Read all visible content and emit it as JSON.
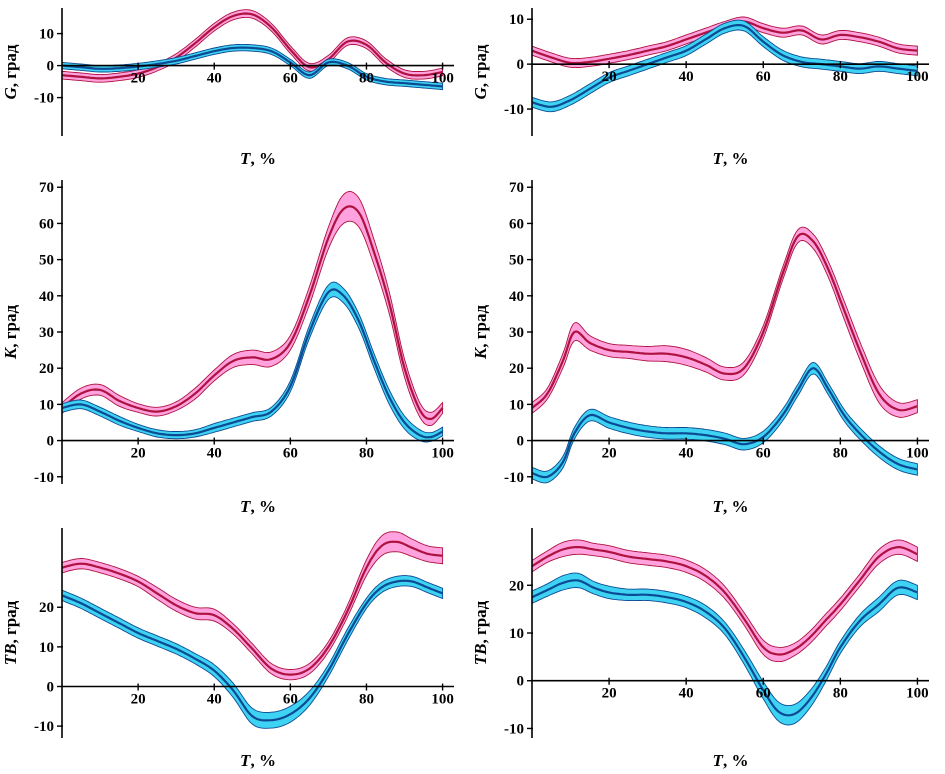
{
  "colors": {
    "red": {
      "line": "#ae1240",
      "band": "#ffa2de"
    },
    "blue": {
      "line": "#0d4a94",
      "band": "#3ed3f2"
    }
  },
  "chart_data": [
    {
      "type": "area",
      "name": "chart-g-left",
      "ylabel": {
        "var": "G",
        "rest": ", град"
      },
      "xlabel": {
        "var": "T",
        "rest": ", %"
      },
      "xlim": [
        0,
        103
      ],
      "ylim": [
        -22,
        18
      ],
      "xticks": [
        20,
        40,
        60,
        80,
        100
      ],
      "yticks": [
        -10,
        0,
        10
      ],
      "grid": false,
      "legend": "none",
      "series": [
        {
          "color": "red",
          "band": 1.2,
          "x": [
            0,
            5,
            10,
            15,
            20,
            25,
            30,
            35,
            40,
            45,
            50,
            55,
            60,
            65,
            70,
            75,
            80,
            85,
            90,
            95,
            100
          ],
          "y": [
            -3,
            -3.5,
            -4,
            -3.5,
            -2.5,
            -0.5,
            2.5,
            7,
            12,
            15.5,
            16,
            12,
            5,
            -0.5,
            2,
            7.5,
            6.5,
            1,
            -2.5,
            -3,
            -2
          ]
        },
        {
          "color": "blue",
          "band": 1.0,
          "x": [
            0,
            5,
            10,
            15,
            20,
            25,
            30,
            35,
            40,
            45,
            50,
            55,
            60,
            65,
            70,
            75,
            80,
            85,
            90,
            95,
            100
          ],
          "y": [
            0,
            -0.5,
            -1,
            -0.8,
            -0.3,
            0.5,
            1.5,
            3,
            4.5,
            5.5,
            5.5,
            4.5,
            1,
            -3,
            1,
            0,
            -3.5,
            -5,
            -5.5,
            -6,
            -6.5
          ]
        }
      ]
    },
    {
      "type": "area",
      "name": "chart-g-right",
      "ylabel": {
        "var": "G",
        "rest": ", град"
      },
      "xlabel": {
        "var": "T",
        "rest": ", %"
      },
      "xlim": [
        0,
        103
      ],
      "ylim": [
        -16,
        12.5
      ],
      "xticks": [
        20,
        40,
        60,
        80,
        100
      ],
      "yticks": [
        -10,
        0,
        10
      ],
      "grid": false,
      "legend": "none",
      "series": [
        {
          "color": "red",
          "band": 1.0,
          "x": [
            0,
            5,
            10,
            15,
            20,
            25,
            30,
            35,
            40,
            45,
            50,
            55,
            60,
            65,
            70,
            75,
            80,
            85,
            90,
            95,
            100
          ],
          "y": [
            3,
            1.5,
            0.3,
            0.5,
            1.2,
            2,
            3,
            4,
            5.5,
            7,
            8.5,
            9.5,
            8,
            7,
            7.5,
            5.5,
            6.5,
            6,
            5,
            3.5,
            3
          ]
        },
        {
          "color": "blue",
          "band": 1.1,
          "x": [
            0,
            5,
            10,
            15,
            20,
            25,
            30,
            35,
            40,
            45,
            50,
            55,
            60,
            65,
            70,
            75,
            80,
            85,
            90,
            95,
            100
          ],
          "y": [
            -8.5,
            -9.5,
            -8,
            -5.5,
            -3,
            -1.5,
            0,
            1.5,
            3,
            5.5,
            8,
            8.5,
            5,
            2,
            0.5,
            0,
            -0.5,
            -1,
            -0.5,
            -1,
            -1.5
          ]
        }
      ]
    },
    {
      "type": "area",
      "name": "chart-k-left",
      "ylabel": {
        "var": "K",
        "rest": ", град"
      },
      "xlabel": {
        "var": "T",
        "rest": ", %"
      },
      "xlim": [
        0,
        103
      ],
      "ylim": [
        -12,
        72
      ],
      "xticks": [
        20,
        40,
        60,
        80,
        100
      ],
      "yticks": [
        -10,
        0,
        10,
        20,
        30,
        40,
        50,
        60,
        70
      ],
      "grid": false,
      "legend": "none",
      "series": [
        {
          "color": "red",
          "band": [
            1.5,
            1.5,
            1.5,
            1.5,
            1.2,
            1.2,
            1.2,
            1.5,
            1.5,
            1.8,
            2,
            2,
            2,
            2.5,
            3,
            4,
            4,
            3.5,
            3,
            2.5,
            2,
            1.8,
            1.5
          ],
          "x": [
            0,
            5,
            10,
            15,
            20,
            25,
            30,
            35,
            40,
            45,
            50,
            55,
            60,
            65,
            70,
            74,
            78,
            82,
            86,
            90,
            94,
            97,
            100
          ],
          "y": [
            9,
            13,
            14,
            11,
            9,
            8,
            9.5,
            13,
            18,
            22,
            23,
            22.5,
            27,
            40,
            56,
            64,
            63,
            52,
            38,
            20,
            8.5,
            6,
            9
          ]
        },
        {
          "color": "blue",
          "band": [
            1.2,
            1.2,
            1.2,
            1.2,
            1,
            1,
            1,
            1,
            1.2,
            1.2,
            1.2,
            1.2,
            1.5,
            1.8,
            2,
            2,
            2,
            2,
            2,
            1.8,
            1.5,
            1.2,
            1.2
          ],
          "x": [
            0,
            5,
            10,
            15,
            20,
            25,
            30,
            35,
            40,
            45,
            50,
            55,
            60,
            65,
            70,
            74,
            78,
            82,
            86,
            90,
            94,
            97,
            100
          ],
          "y": [
            9,
            10,
            8,
            5.5,
            3.5,
            2,
            1.5,
            2,
            3.5,
            5,
            6.5,
            8,
            15,
            30,
            41,
            40,
            33,
            22,
            12,
            5,
            1.5,
            1,
            2.5
          ]
        }
      ]
    },
    {
      "type": "area",
      "name": "chart-k-right",
      "ylabel": {
        "var": "K",
        "rest": ", град"
      },
      "xlabel": {
        "var": "T",
        "rest": ", %"
      },
      "xlim": [
        0,
        103
      ],
      "ylim": [
        -12,
        72
      ],
      "xticks": [
        20,
        40,
        60,
        80,
        100
      ],
      "yticks": [
        -10,
        0,
        10,
        20,
        30,
        40,
        50,
        60,
        70
      ],
      "grid": false,
      "legend": "none",
      "series": [
        {
          "color": "red",
          "band": [
            1.5,
            1.5,
            2,
            2.5,
            2,
            1.8,
            1.8,
            2,
            2.2,
            2.2,
            2,
            1.8,
            1.8,
            1.8,
            1.8,
            1.8,
            2,
            2.2,
            2.5,
            2.5,
            2.5,
            2,
            1.8
          ],
          "x": [
            0,
            4,
            8,
            11,
            15,
            20,
            25,
            30,
            35,
            40,
            45,
            50,
            55,
            60,
            65,
            69,
            73,
            77,
            81,
            85,
            90,
            95,
            100
          ],
          "y": [
            9,
            13,
            22,
            30,
            27,
            25,
            24.5,
            24,
            24,
            23,
            21,
            18.5,
            20,
            30,
            46,
            56.5,
            55,
            47,
            36,
            25,
            13,
            8.5,
            9.5
          ]
        },
        {
          "color": "blue",
          "band": 1.6,
          "x": [
            0,
            4,
            8,
            11,
            15,
            20,
            25,
            30,
            35,
            40,
            45,
            50,
            55,
            60,
            65,
            69,
            73,
            77,
            81,
            85,
            90,
            95,
            100
          ],
          "y": [
            -9,
            -10,
            -6,
            2,
            7,
            5,
            3.5,
            2.5,
            2,
            2,
            1.5,
            0.5,
            -1,
            1,
            7,
            14,
            20,
            14,
            7,
            2,
            -3,
            -6.5,
            -8
          ]
        }
      ]
    },
    {
      "type": "area",
      "name": "chart-tb-left",
      "ylabel": {
        "var": "TB",
        "rest": ", град"
      },
      "xlabel": {
        "var": "T",
        "rest": ", %"
      },
      "xlim": [
        0,
        103
      ],
      "ylim": [
        -13,
        40
      ],
      "xticks": [
        20,
        40,
        60,
        80,
        100
      ],
      "yticks": [
        -10,
        0,
        10,
        20
      ],
      "grid": false,
      "legend": "none",
      "series": [
        {
          "color": "red",
          "band": [
            1.3,
            1.3,
            1.3,
            1.3,
            1.3,
            1.5,
            1.5,
            1.5,
            1.5,
            1.3,
            1.3,
            1.3,
            1.3,
            1.3,
            1.3,
            1.5,
            2,
            2.5,
            2.5,
            2.2,
            2,
            2
          ],
          "x": [
            0,
            5,
            10,
            15,
            20,
            25,
            30,
            35,
            40,
            45,
            50,
            55,
            60,
            65,
            70,
            75,
            80,
            84,
            88,
            92,
            96,
            100
          ],
          "y": [
            30,
            31,
            30,
            28.5,
            26.5,
            23.5,
            20.5,
            18.5,
            18,
            14.5,
            9.5,
            4.5,
            3,
            4.5,
            10,
            19,
            30,
            35.5,
            36.5,
            35,
            33.5,
            33
          ]
        },
        {
          "color": "blue",
          "band": [
            1.3,
            1.3,
            1.3,
            1.3,
            1.3,
            1.3,
            1.3,
            1.3,
            1.5,
            1.8,
            2,
            2,
            2,
            1.8,
            1.5,
            1.5,
            1.3,
            1.3,
            1.3,
            1.3,
            1.3,
            1.3
          ],
          "x": [
            0,
            5,
            10,
            15,
            20,
            25,
            30,
            35,
            40,
            45,
            50,
            55,
            60,
            65,
            70,
            75,
            80,
            84,
            88,
            92,
            96,
            100
          ],
          "y": [
            23,
            21,
            18.5,
            16,
            13.5,
            11.5,
            9.5,
            7,
            4,
            -1,
            -7.5,
            -8.5,
            -7,
            -3,
            4,
            13,
            21,
            25,
            26.5,
            26.5,
            25,
            23.5
          ]
        }
      ]
    },
    {
      "type": "area",
      "name": "chart-tb-right",
      "ylabel": {
        "var": "TB",
        "rest": ", град"
      },
      "xlabel": {
        "var": "T",
        "rest": ", %"
      },
      "xlim": [
        0,
        103
      ],
      "ylim": [
        -12,
        32
      ],
      "xticks": [
        20,
        40,
        60,
        80,
        100
      ],
      "yticks": [
        -10,
        0,
        10,
        20
      ],
      "grid": false,
      "legend": "none",
      "series": [
        {
          "color": "red",
          "band": [
            1.2,
            1.2,
            1.5,
            1.5,
            1.3,
            1.3,
            1.3,
            1.3,
            1.3,
            1.3,
            1.3,
            1.3,
            1.3,
            1.5,
            1.5,
            1.3,
            1.3,
            1.3,
            1.3,
            1.3,
            1.5,
            1.5,
            1.5
          ],
          "x": [
            0,
            4,
            8,
            12,
            16,
            20,
            25,
            30,
            35,
            40,
            45,
            50,
            55,
            60,
            64,
            68,
            72,
            76,
            80,
            85,
            90,
            95,
            100
          ],
          "y": [
            24,
            26,
            27.5,
            28,
            27.5,
            27,
            26,
            25.5,
            25,
            24,
            22,
            18.5,
            13,
            7,
            5.5,
            6.5,
            9,
            12.5,
            16,
            21,
            26,
            28,
            26.5
          ]
        },
        {
          "color": "blue",
          "band": [
            1.3,
            1.3,
            1.5,
            1.5,
            1.3,
            1.3,
            1.2,
            1.2,
            1.2,
            1.2,
            1.3,
            1.3,
            1.5,
            1.8,
            2,
            2,
            1.8,
            1.5,
            1.3,
            1.3,
            1.5,
            1.5,
            1.5
          ],
          "x": [
            0,
            4,
            8,
            12,
            16,
            20,
            25,
            30,
            35,
            40,
            45,
            50,
            55,
            60,
            64,
            68,
            72,
            76,
            80,
            85,
            90,
            95,
            100
          ],
          "y": [
            17.5,
            19,
            20.5,
            21,
            19.5,
            18.5,
            18,
            18,
            17.5,
            16.5,
            14.5,
            11,
            5,
            -2,
            -6.5,
            -7,
            -4,
            1,
            7,
            12.5,
            16,
            19.5,
            18.5
          ]
        }
      ]
    }
  ]
}
